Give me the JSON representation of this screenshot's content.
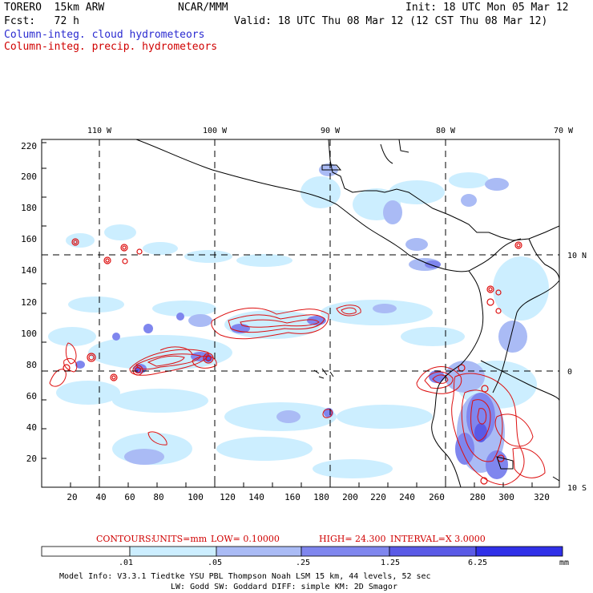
{
  "header": {
    "model": "TORERO  15km ARW",
    "org": "NCAR/MMM",
    "init": "Init: 18 UTC Mon 05 Mar 12",
    "fcst": "Fcst:   72 h",
    "valid": "Valid: 18 UTC Thu 08 Mar 12 (12 CST Thu 08 Mar 12)",
    "field1": "Column-integ. cloud hydrometeors",
    "field2": "Column-integ. precip. hydrometeors"
  },
  "map": {
    "lon_labels": [
      "110 W",
      "100 W",
      "90 W",
      "80 W",
      "70 W"
    ],
    "lat_labels": [
      "10 N",
      "0",
      "10 S"
    ],
    "x_ticks": [
      "20",
      "40",
      "60",
      "80",
      "100",
      "120",
      "140",
      "160",
      "180",
      "200",
      "220",
      "240",
      "260",
      "280",
      "300",
      "320"
    ],
    "y_ticks": [
      "220",
      "200",
      "180",
      "160",
      "140",
      "120",
      "100",
      "80",
      "60",
      "40",
      "20"
    ]
  },
  "contours": {
    "label": "CONTOURS:",
    "units": "UNITS=mm",
    "low": "LOW= 0.10000",
    "high": "HIGH=  24.300",
    "interval": "INTERVAL=X  3.0000"
  },
  "colorbar": {
    "labels": [
      ".01",
      ".05",
      ".25",
      "1.25",
      "6.25"
    ],
    "unit": "mm",
    "colors": [
      "#ffffff",
      "#cceeff",
      "#aabbf5",
      "#7f86ee",
      "#5a5ae6",
      "#3030e8"
    ]
  },
  "footer": {
    "line1": "Model Info: V3.3.1   Tiedtke YSU PBL  Thompson    Noah LSM  15 km,   44 levels,   52 sec",
    "line2": "LW: Godd SW: Goddard DIFF: simple KM: 2D Smagor"
  }
}
